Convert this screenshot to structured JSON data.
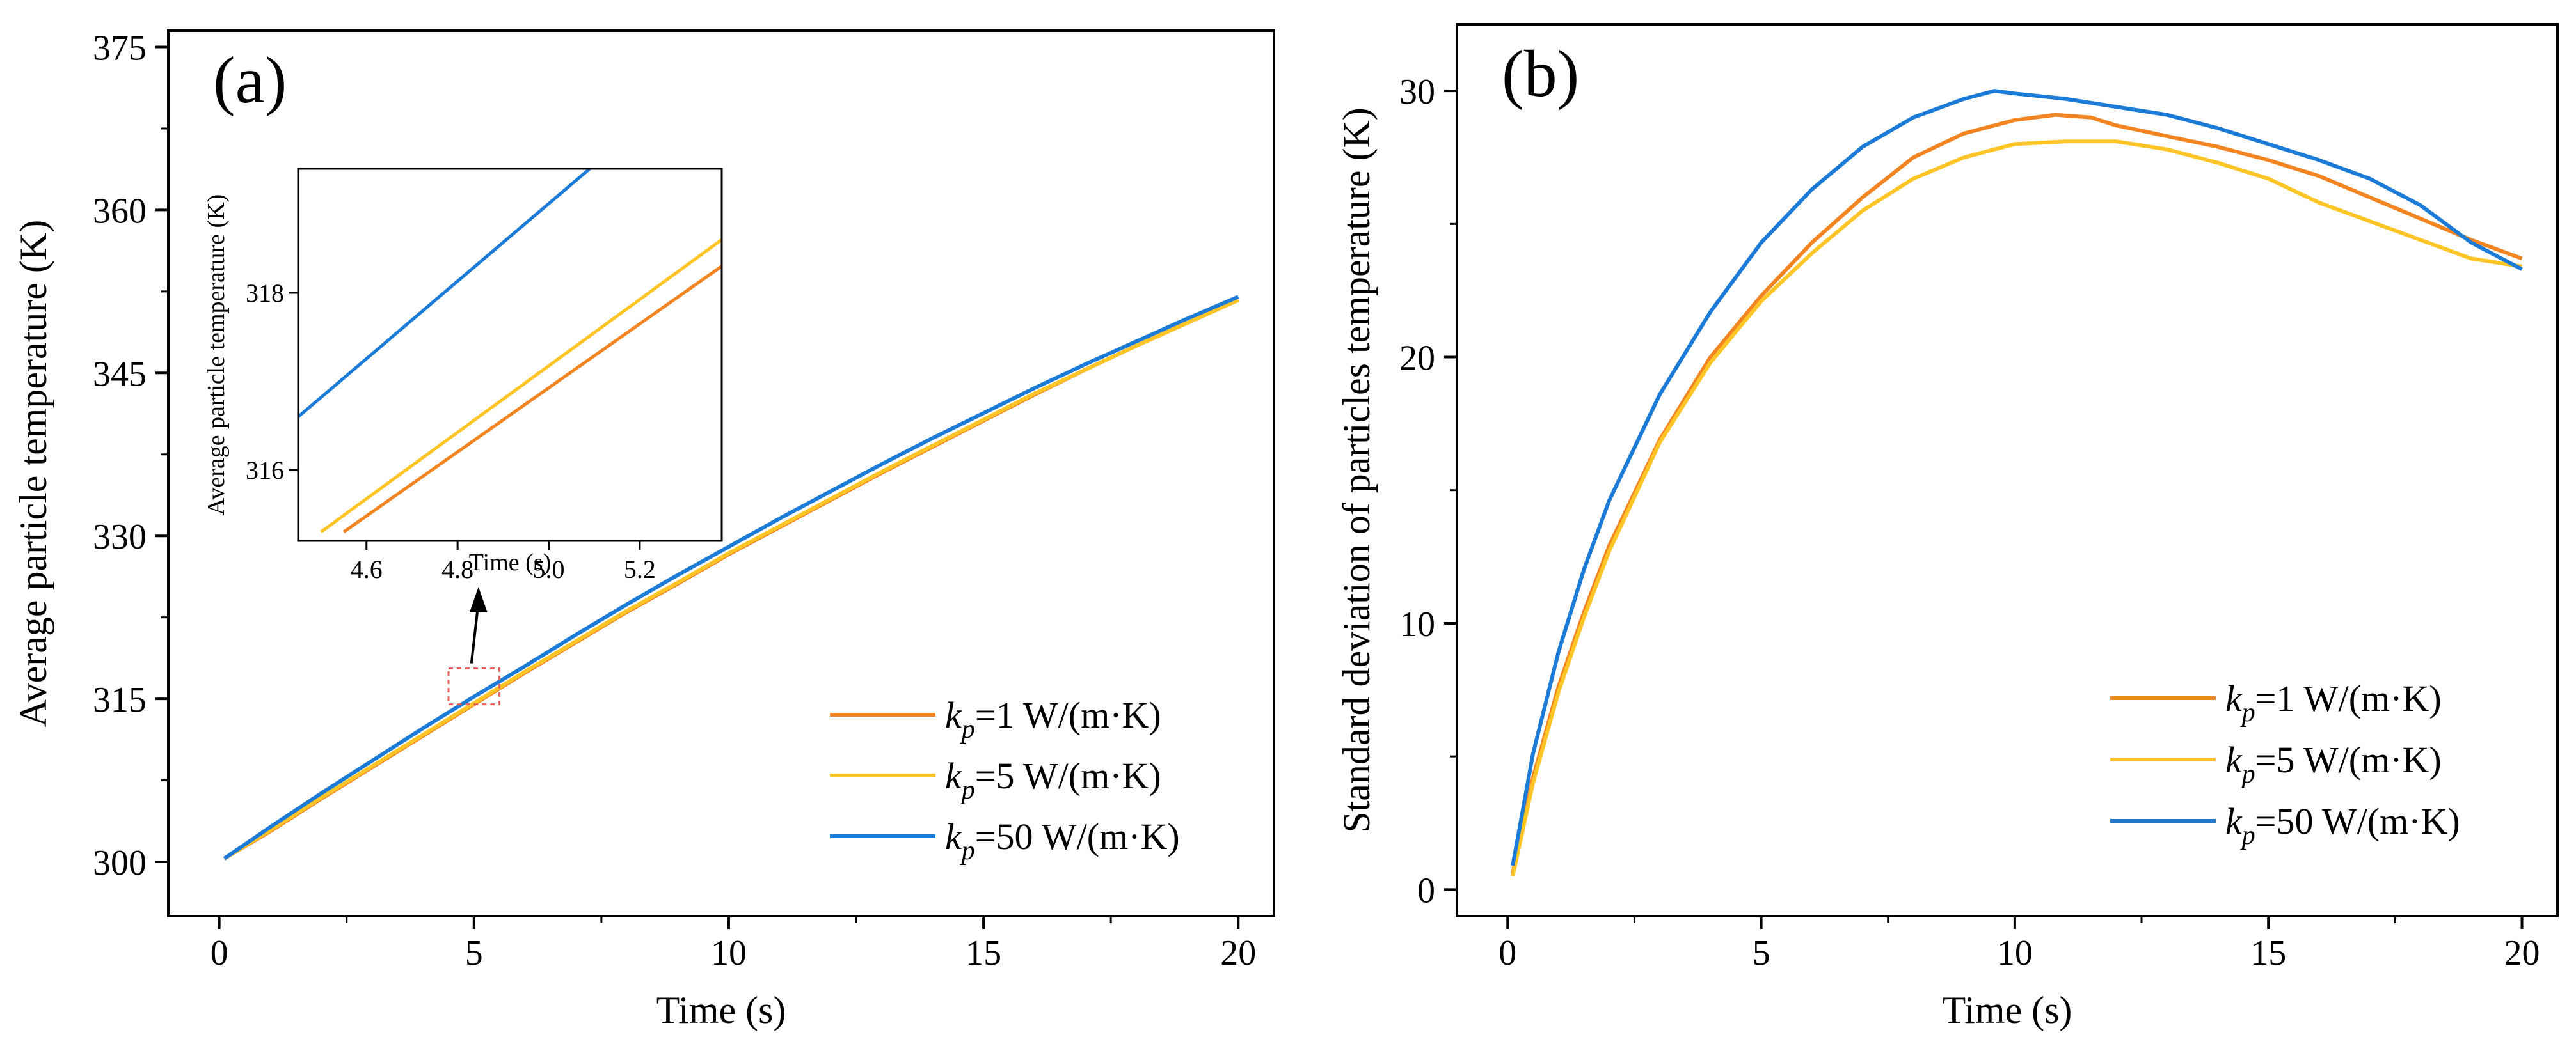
{
  "colors": {
    "kp1": "#F28522",
    "kp5": "#FFC425",
    "kp50": "#1B7BD6",
    "zoom_box": "#E8605E"
  },
  "chart_data": [
    {
      "id": "a",
      "panel_label": "(a)",
      "type": "line",
      "xlabel": "Time (s)",
      "ylabel": "Average particle temperature (K)",
      "xlim": [
        -1.0,
        20.7
      ],
      "ylim": [
        295,
        376.5
      ],
      "xticks": [
        0,
        5,
        10,
        15,
        20
      ],
      "xtick_labels": [
        "0",
        "5",
        "10",
        "15",
        "20"
      ],
      "yticks": [
        300,
        315,
        330,
        345,
        360,
        375
      ],
      "ytick_labels": [
        "300",
        "315",
        "330",
        "345",
        "360",
        "375"
      ],
      "legend_position": "bottom-right",
      "series": [
        {
          "key": "kp1",
          "legend_prefix": "k",
          "legend_sub": "p",
          "legend_suffix": "=1 W/(m·K)",
          "x": [
            0.1,
            1,
            2,
            3,
            4,
            5,
            6,
            7,
            8,
            9,
            10,
            11,
            12,
            13,
            14,
            15,
            16,
            17,
            18,
            19,
            20
          ],
          "y": [
            300.3,
            302.8,
            305.8,
            308.7,
            311.6,
            314.5,
            317.4,
            320.2,
            323.0,
            325.6,
            328.3,
            330.8,
            333.3,
            335.8,
            338.2,
            340.6,
            343.0,
            345.3,
            347.5,
            349.6,
            351.7
          ]
        },
        {
          "key": "kp5",
          "legend_prefix": "k",
          "legend_sub": "p",
          "legend_suffix": "=5 W/(m·K)",
          "x": [
            0.1,
            1,
            2,
            3,
            4,
            5,
            6,
            7,
            8,
            9,
            10,
            11,
            12,
            13,
            14,
            15,
            16,
            17,
            18,
            19,
            20
          ],
          "y": [
            300.3,
            302.9,
            305.9,
            308.8,
            311.7,
            314.6,
            317.5,
            320.3,
            323.1,
            325.7,
            328.4,
            330.9,
            333.4,
            335.9,
            338.3,
            340.7,
            343.1,
            345.3,
            347.5,
            349.6,
            351.7
          ]
        },
        {
          "key": "kp50",
          "legend_prefix": "k",
          "legend_sub": "p",
          "legend_suffix": "=50 W/(m·K)",
          "x": [
            0.1,
            1,
            2,
            3,
            4,
            5,
            6,
            7,
            8,
            9,
            10,
            11,
            12,
            13,
            14,
            15,
            16,
            17,
            18,
            19,
            20
          ],
          "y": [
            300.3,
            303.2,
            306.3,
            309.3,
            312.3,
            315.2,
            318.0,
            320.9,
            323.7,
            326.4,
            329.0,
            331.6,
            334.1,
            336.6,
            339.0,
            341.3,
            343.6,
            345.8,
            347.9,
            350.0,
            352.0
          ]
        }
      ],
      "inset": {
        "type": "line",
        "xlabel": "Time (s)",
        "ylabel": "Average particle temperature (K)",
        "xlim": [
          4.45,
          5.38
        ],
        "ylim": [
          315.2,
          319.4
        ],
        "xticks": [
          4.6,
          4.8,
          5.0,
          5.2
        ],
        "xtick_labels": [
          "4.6",
          "4.8",
          "5.0",
          "5.2"
        ],
        "yticks": [
          316,
          318
        ],
        "ytick_labels": [
          "316",
          "318"
        ],
        "zoom_region": {
          "x": [
            4.5,
            5.5
          ],
          "y": [
            314.5,
            317.8
          ]
        },
        "series": [
          {
            "key": "kp1",
            "x": [
              4.55,
              5.38
            ],
            "y": [
              315.3,
              318.3
            ]
          },
          {
            "key": "kp5",
            "x": [
              4.5,
              5.38
            ],
            "y": [
              315.3,
              318.6
            ]
          },
          {
            "key": "kp50",
            "x": [
              4.45,
              5.09
            ],
            "y": [
              316.6,
              319.4
            ]
          }
        ]
      }
    },
    {
      "id": "b",
      "panel_label": "(b)",
      "type": "line",
      "xlabel": "Time (s)",
      "ylabel": "Standard deviation of particles temperature (K)",
      "xlim": [
        -1.0,
        20.7
      ],
      "ylim": [
        -1.0,
        32.5
      ],
      "xticks": [
        0,
        5,
        10,
        15,
        20
      ],
      "xtick_labels": [
        "0",
        "5",
        "10",
        "15",
        "20"
      ],
      "yticks": [
        0,
        10,
        20,
        30
      ],
      "ytick_labels": [
        "0",
        "10",
        "20",
        "30"
      ],
      "legend_position": "bottom-right",
      "series": [
        {
          "key": "kp1",
          "legend_prefix": "k",
          "legend_sub": "p",
          "legend_suffix": "=1 W/(m·K)",
          "x": [
            0.1,
            0.5,
            1,
            1.5,
            2,
            3,
            4,
            5,
            6,
            7,
            8,
            9,
            10,
            10.8,
            11.5,
            12,
            13,
            14,
            15,
            16,
            17,
            18,
            19,
            20
          ],
          "y": [
            0.6,
            4.2,
            7.6,
            10.4,
            12.9,
            16.9,
            20.0,
            22.3,
            24.3,
            26.0,
            27.5,
            28.4,
            28.9,
            29.1,
            29.0,
            28.7,
            28.3,
            27.9,
            27.4,
            26.8,
            26.0,
            25.2,
            24.4,
            23.7
          ]
        },
        {
          "key": "kp5",
          "legend_prefix": "k",
          "legend_sub": "p",
          "legend_suffix": "=5 W/(m·K)",
          "x": [
            0.1,
            0.5,
            1,
            1.5,
            2,
            3,
            4,
            5,
            6,
            7,
            8,
            9,
            10,
            11,
            12,
            13,
            14,
            15,
            16,
            17,
            18,
            19,
            20
          ],
          "y": [
            0.5,
            4.0,
            7.4,
            10.2,
            12.7,
            16.8,
            19.8,
            22.1,
            23.9,
            25.5,
            26.7,
            27.5,
            28.0,
            28.1,
            28.1,
            27.8,
            27.3,
            26.7,
            25.8,
            25.1,
            24.4,
            23.7,
            23.4
          ]
        },
        {
          "key": "kp50",
          "legend_prefix": "k",
          "legend_sub": "p",
          "legend_suffix": "=50 W/(m·K)",
          "x": [
            0.1,
            0.5,
            1,
            1.5,
            2,
            3,
            4,
            5,
            6,
            7,
            8,
            9,
            9.6,
            10,
            11,
            12,
            13,
            14,
            15,
            16,
            17,
            18,
            19,
            20
          ],
          "y": [
            0.9,
            5.1,
            8.9,
            12.0,
            14.6,
            18.6,
            21.7,
            24.3,
            26.3,
            27.9,
            29.0,
            29.7,
            30.0,
            29.9,
            29.7,
            29.4,
            29.1,
            28.6,
            28.0,
            27.4,
            26.7,
            25.7,
            24.3,
            23.3
          ]
        }
      ]
    }
  ]
}
